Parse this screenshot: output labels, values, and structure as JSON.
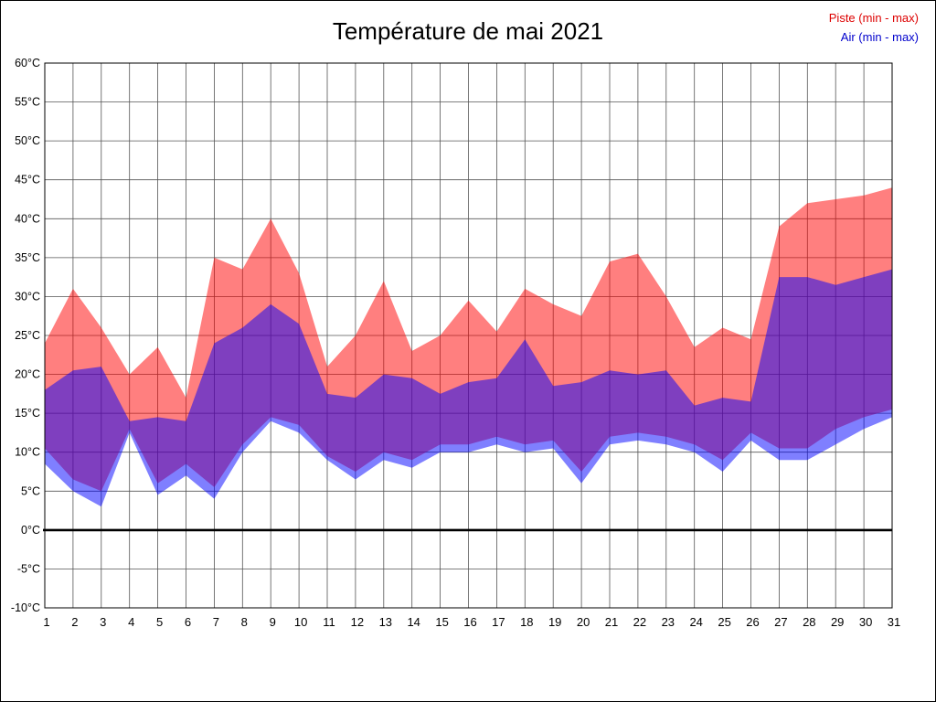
{
  "title": "Température de mai 2021",
  "legend": {
    "piste": {
      "label": "Piste (min - max)",
      "color": "#dd0000"
    },
    "air": {
      "label": "Air (min - max)",
      "color": "#0000cc"
    }
  },
  "chart_data": {
    "type": "area",
    "title": "Température de mai 2021",
    "x": [
      1,
      2,
      3,
      4,
      5,
      6,
      7,
      8,
      9,
      10,
      11,
      12,
      13,
      14,
      15,
      16,
      17,
      18,
      19,
      20,
      21,
      22,
      23,
      24,
      25,
      26,
      27,
      28,
      29,
      30,
      31
    ],
    "ylim": [
      -10,
      60
    ],
    "ytick_step": 5,
    "ytick_suffix": "°C",
    "grid": true,
    "zero_line": true,
    "legend_position": "top-right",
    "bands": [
      {
        "id": "piste",
        "name": "Piste (min - max)",
        "fill": "rgba(255,0,0,0.5)",
        "min": [
          10.5,
          6.5,
          5,
          13,
          6,
          8.5,
          5.5,
          11,
          14.5,
          13.5,
          9.5,
          7.5,
          10,
          9,
          11,
          11,
          12,
          11,
          11.5,
          7.5,
          12,
          12.5,
          12,
          11,
          9,
          12.5,
          10.5,
          10.5,
          13,
          14.5,
          15.5
        ],
        "max": [
          24,
          31,
          26,
          20,
          23.5,
          17,
          35,
          33.5,
          40,
          33,
          21,
          25,
          32,
          23,
          25,
          29.5,
          25.5,
          31,
          29,
          27.5,
          34.5,
          35.5,
          30,
          23.5,
          26,
          24.5,
          39,
          42,
          42.5,
          43,
          44
        ]
      },
      {
        "id": "air",
        "name": "Air (min - max)",
        "fill": "rgba(0,0,255,0.5)",
        "min": [
          8.5,
          5,
          3,
          12.5,
          4.5,
          7,
          4,
          10,
          14,
          12.5,
          9,
          6.5,
          9,
          8,
          10,
          10,
          11,
          10,
          10.5,
          6,
          11,
          11.5,
          11,
          10,
          7.5,
          11.5,
          9,
          9,
          11,
          13,
          14.5
        ],
        "max": [
          18,
          20.5,
          21,
          14,
          14.5,
          14,
          24,
          26,
          29,
          26.5,
          17.5,
          17,
          20,
          19.5,
          17.5,
          19,
          19.5,
          24.5,
          18.5,
          19,
          20.5,
          20,
          20.5,
          16,
          17,
          16.5,
          32.5,
          32.5,
          31.5,
          32.5,
          33.5
        ]
      }
    ]
  }
}
